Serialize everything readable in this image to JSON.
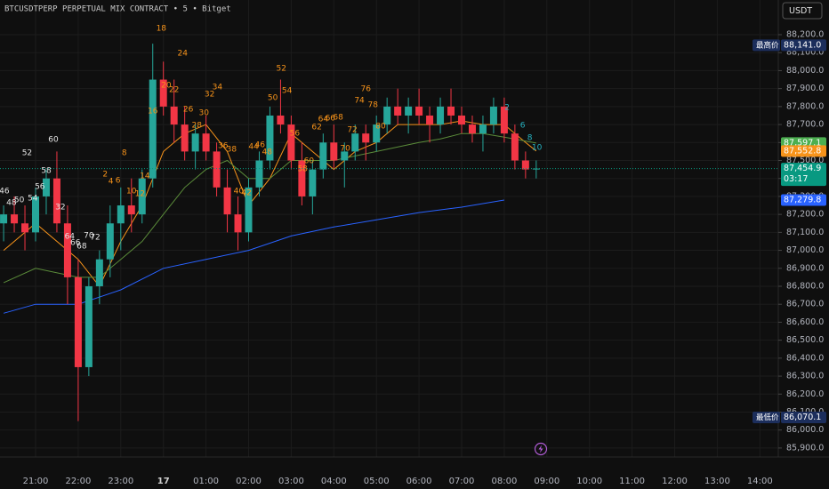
{
  "chart_data": {
    "type": "candlestick",
    "title": "BTCUSDTPERP PERPETUAL MIX CONTRACT • 5 • Bitget",
    "currency_button": "USDT",
    "up_color": "#26a69a",
    "down_color": "#f23645",
    "grid": true,
    "ylim": [
      85850,
      88393
    ],
    "yticks": [
      {
        "value": 85900,
        "label": "85,900.0"
      },
      {
        "value": 86000,
        "label": "86,000.0"
      },
      {
        "value": 86100,
        "label": "86,100.0"
      },
      {
        "value": 86200,
        "label": "86,200.0"
      },
      {
        "value": 86300,
        "label": "86,300.0"
      },
      {
        "value": 86400,
        "label": "86,400.0"
      },
      {
        "value": 86500,
        "label": "86,500.0"
      },
      {
        "value": 86600,
        "label": "86,600.0"
      },
      {
        "value": 86700,
        "label": "86,700.0"
      },
      {
        "value": 86800,
        "label": "86,800.0"
      },
      {
        "value": 86900,
        "label": "86,900.0"
      },
      {
        "value": 87000,
        "label": "87,000.0"
      },
      {
        "value": 87100,
        "label": "87,100.0"
      },
      {
        "value": 87200,
        "label": "87,200.0"
      },
      {
        "value": 87300,
        "label": "87,300.0"
      },
      {
        "value": 87400,
        "label": "87,400.0"
      },
      {
        "value": 87500,
        "label": "87,500.0"
      },
      {
        "value": 87600,
        "label": "87,600.0"
      },
      {
        "value": 87700,
        "label": "87,700.0"
      },
      {
        "value": 87800,
        "label": "87,800.0"
      },
      {
        "value": 87900,
        "label": "87,900.0"
      },
      {
        "value": 88000,
        "label": "88,000.0"
      },
      {
        "value": 88100,
        "label": "88,100.0"
      },
      {
        "value": 88200,
        "label": "88,200.0"
      }
    ],
    "xticks": [
      "21:00",
      "22:00",
      "23:00",
      {
        "value": "00:00",
        "label": "17"
      },
      "01:00",
      "02:00",
      "03:00",
      "04:00",
      "05:00",
      "06:00",
      "07:00",
      "08:00",
      "09:00",
      "10:00",
      "11:00",
      "12:00",
      "13:00",
      "14:00"
    ],
    "x": [
      "20:15",
      "20:30",
      "20:45",
      "21:00",
      "21:15",
      "21:30",
      "21:45",
      "22:00",
      "22:15",
      "22:30",
      "22:45",
      "23:00",
      "23:15",
      "23:30",
      "23:45",
      "00:00",
      "00:15",
      "00:30",
      "00:45",
      "01:00",
      "01:15",
      "01:30",
      "01:45",
      "02:00",
      "02:15",
      "02:30",
      "02:45",
      "03:00",
      "03:15",
      "03:30",
      "03:45",
      "04:00",
      "04:15",
      "04:30",
      "04:45",
      "05:00",
      "05:15",
      "05:30",
      "05:45",
      "06:00",
      "06:15",
      "06:30",
      "06:45",
      "07:00",
      "07:15",
      "07:30",
      "07:45",
      "08:00",
      "08:15",
      "08:30",
      "08:45"
    ],
    "open": [
      87150,
      87200,
      87150,
      87100,
      87300,
      87400,
      87150,
      86850,
      86350,
      86800,
      86950,
      87150,
      87250,
      87200,
      87400,
      87950,
      87800,
      87700,
      87550,
      87650,
      87550,
      87350,
      87200,
      87100,
      87350,
      87500,
      87750,
      87700,
      87500,
      87300,
      87450,
      87600,
      87500,
      87550,
      87650,
      87600,
      87700,
      87800,
      87750,
      87800,
      87750,
      87700,
      87800,
      87750,
      87700,
      87650,
      87700,
      87800,
      87650,
      87500,
      87450
    ],
    "high": [
      87250,
      87300,
      87250,
      87350,
      87450,
      87550,
      87250,
      86950,
      86850,
      87000,
      87250,
      87350,
      87400,
      87450,
      88150,
      88050,
      87950,
      87800,
      87700,
      87750,
      87600,
      87450,
      87300,
      87400,
      87550,
      87800,
      87950,
      87750,
      87600,
      87500,
      87650,
      87700,
      87600,
      87700,
      87700,
      87750,
      87850,
      87900,
      87850,
      87900,
      87800,
      87850,
      87900,
      87800,
      87750,
      87750,
      87850,
      87850,
      87700,
      87550,
      87500
    ],
    "low": [
      87050,
      87100,
      87000,
      87050,
      87200,
      87100,
      86700,
      86050,
      86300,
      86700,
      86850,
      87000,
      87100,
      87150,
      87350,
      87750,
      87600,
      87500,
      87450,
      87500,
      87300,
      87100,
      87000,
      87050,
      87300,
      87450,
      87650,
      87450,
      87250,
      87200,
      87400,
      87450,
      87350,
      87500,
      87500,
      87550,
      87650,
      87700,
      87650,
      87700,
      87600,
      87650,
      87700,
      87650,
      87600,
      87550,
      87650,
      87600,
      87450,
      87400,
      87400
    ],
    "close": [
      87200,
      87150,
      87100,
      87300,
      87400,
      87150,
      86850,
      86350,
      86800,
      86950,
      87150,
      87250,
      87200,
      87400,
      87950,
      87800,
      87700,
      87550,
      87650,
      87550,
      87350,
      87200,
      87100,
      87350,
      87500,
      87750,
      87700,
      87500,
      87300,
      87450,
      87600,
      87500,
      87550,
      87650,
      87600,
      87700,
      87800,
      87750,
      87800,
      87750,
      87700,
      87800,
      87750,
      87700,
      87650,
      87700,
      87800,
      87650,
      87500,
      87450,
      87454.9
    ],
    "series": [
      {
        "color": "#f7931a",
        "x": [
          "20:15",
          "21:00",
          "22:00",
          "22:30",
          "23:00",
          "23:30",
          "00:00",
          "00:30",
          "01:00",
          "01:30",
          "02:00",
          "02:30",
          "03:00",
          "03:30",
          "04:00",
          "04:30",
          "05:00",
          "05:30",
          "06:00",
          "06:30",
          "07:00",
          "07:30",
          "08:00",
          "08:30",
          "08:45"
        ],
        "values": [
          87000,
          87150,
          86950,
          86800,
          87050,
          87250,
          87550,
          87650,
          87700,
          87550,
          87250,
          87400,
          87650,
          87550,
          87450,
          87550,
          87600,
          87700,
          87700,
          87700,
          87720,
          87700,
          87700,
          87600,
          87552.8
        ]
      },
      {
        "color": "#5b8c3a",
        "x": [
          "20:15",
          "21:00",
          "22:00",
          "22:30",
          "23:00",
          "23:30",
          "00:00",
          "00:30",
          "01:00",
          "01:30",
          "02:00",
          "02:30",
          "03:00",
          "03:30",
          "04:00",
          "05:00",
          "06:00",
          "06:30",
          "07:00",
          "07:30",
          "08:00",
          "08:45"
        ],
        "values": [
          86820,
          86900,
          86850,
          86850,
          86950,
          87050,
          87200,
          87350,
          87450,
          87500,
          87400,
          87400,
          87500,
          87500,
          87500,
          87550,
          87600,
          87620,
          87650,
          87650,
          87630,
          87597.1
        ]
      },
      {
        "color": "#2962ff",
        "x": [
          "20:15",
          "21:00",
          "22:00",
          "23:00",
          "00:00",
          "01:00",
          "02:00",
          "03:00",
          "04:00",
          "05:00",
          "06:00",
          "07:00",
          "08:00"
        ],
        "values": [
          86650,
          86700,
          86700,
          86780,
          86900,
          86950,
          87000,
          87080,
          87130,
          87170,
          87210,
          87240,
          87279.8
        ]
      }
    ],
    "price_tags": [
      {
        "value": 87597.1,
        "label": "87,597.1",
        "color": "#4caf50"
      },
      {
        "value": 87552.8,
        "label": "87,552.8",
        "color": "#f7931a"
      },
      {
        "value": 87454.9,
        "label": "87,454.9",
        "color": "#089981",
        "countdown": "03:17"
      },
      {
        "value": 87279.8,
        "label": "87,279.8",
        "color": "#2962ff"
      }
    ],
    "markers": [
      {
        "label": "最高价",
        "value": 88141.0,
        "value_label": "88,141.0"
      },
      {
        "label": "最低价",
        "value": 86070.1,
        "value_label": "86,070.1"
      }
    ],
    "annotation_groups": [
      {
        "color": "#e6e6e6",
        "labels": [
          "46",
          "48",
          "50",
          "52",
          "54",
          "56",
          "58",
          "60",
          "32",
          "64",
          "66",
          "68",
          "70",
          "72"
        ],
        "times": [
          "20:16",
          "20:26",
          "20:37",
          "20:48",
          "20:56",
          "21:06",
          "21:15",
          "21:25",
          "21:35",
          "21:48",
          "21:56",
          "22:05",
          "22:15",
          "22:24"
        ],
        "prices": [
          87329,
          87265,
          87280,
          87542,
          87290,
          87354,
          87443,
          87616,
          87240,
          87077,
          87042,
          87023,
          87082,
          87072
        ]
      },
      {
        "color": "#f7931a",
        "labels": [
          "2",
          "4",
          "6",
          "8",
          "10",
          "12",
          "14",
          "16",
          "18",
          "20",
          "22",
          "24",
          "26",
          "28",
          "30",
          "32",
          "34",
          "36",
          "38",
          "40",
          "42",
          "44",
          "46",
          "48",
          "50",
          "52",
          "54",
          "56",
          "58",
          "60",
          "62",
          "64",
          "66",
          "68",
          "70",
          "72",
          "74",
          "76",
          "78",
          "80"
        ],
        "times": [
          "22:38",
          "22:46",
          "22:56",
          "23:05",
          "23:15",
          "23:27",
          "23:34",
          "23:45",
          "23:57",
          "00:04",
          "00:15",
          "00:27",
          "00:35",
          "00:47",
          "00:57",
          "01:05",
          "01:16",
          "01:24",
          "01:36",
          "01:46",
          "01:57",
          "02:07",
          "02:16",
          "02:26",
          "02:34",
          "02:46",
          "02:54",
          "03:05",
          "03:16",
          "03:25",
          "03:36",
          "03:45",
          "03:55",
          "04:06",
          "04:16",
          "04:26",
          "04:36",
          "04:45",
          "04:55",
          "05:06"
        ],
        "prices": [
          87423,
          87384,
          87389,
          87542,
          87329,
          87315,
          87413,
          87775,
          88235,
          87918,
          87893,
          88096,
          87785,
          87695,
          87765,
          87869,
          87908,
          87582,
          87562,
          87329,
          87320,
          87577,
          87587,
          87547,
          87849,
          88012,
          87888,
          87651,
          87453,
          87498,
          87686,
          87730,
          87735,
          87740,
          87567,
          87671,
          87834,
          87898,
          87809,
          87691
        ]
      },
      {
        "color": "#26b5c4",
        "labels": [
          "2",
          "6",
          "8",
          "10"
        ],
        "times": [
          "08:04",
          "08:26",
          "08:36",
          "08:46"
        ],
        "prices": [
          87794,
          87695,
          87626,
          87572
        ]
      }
    ]
  }
}
